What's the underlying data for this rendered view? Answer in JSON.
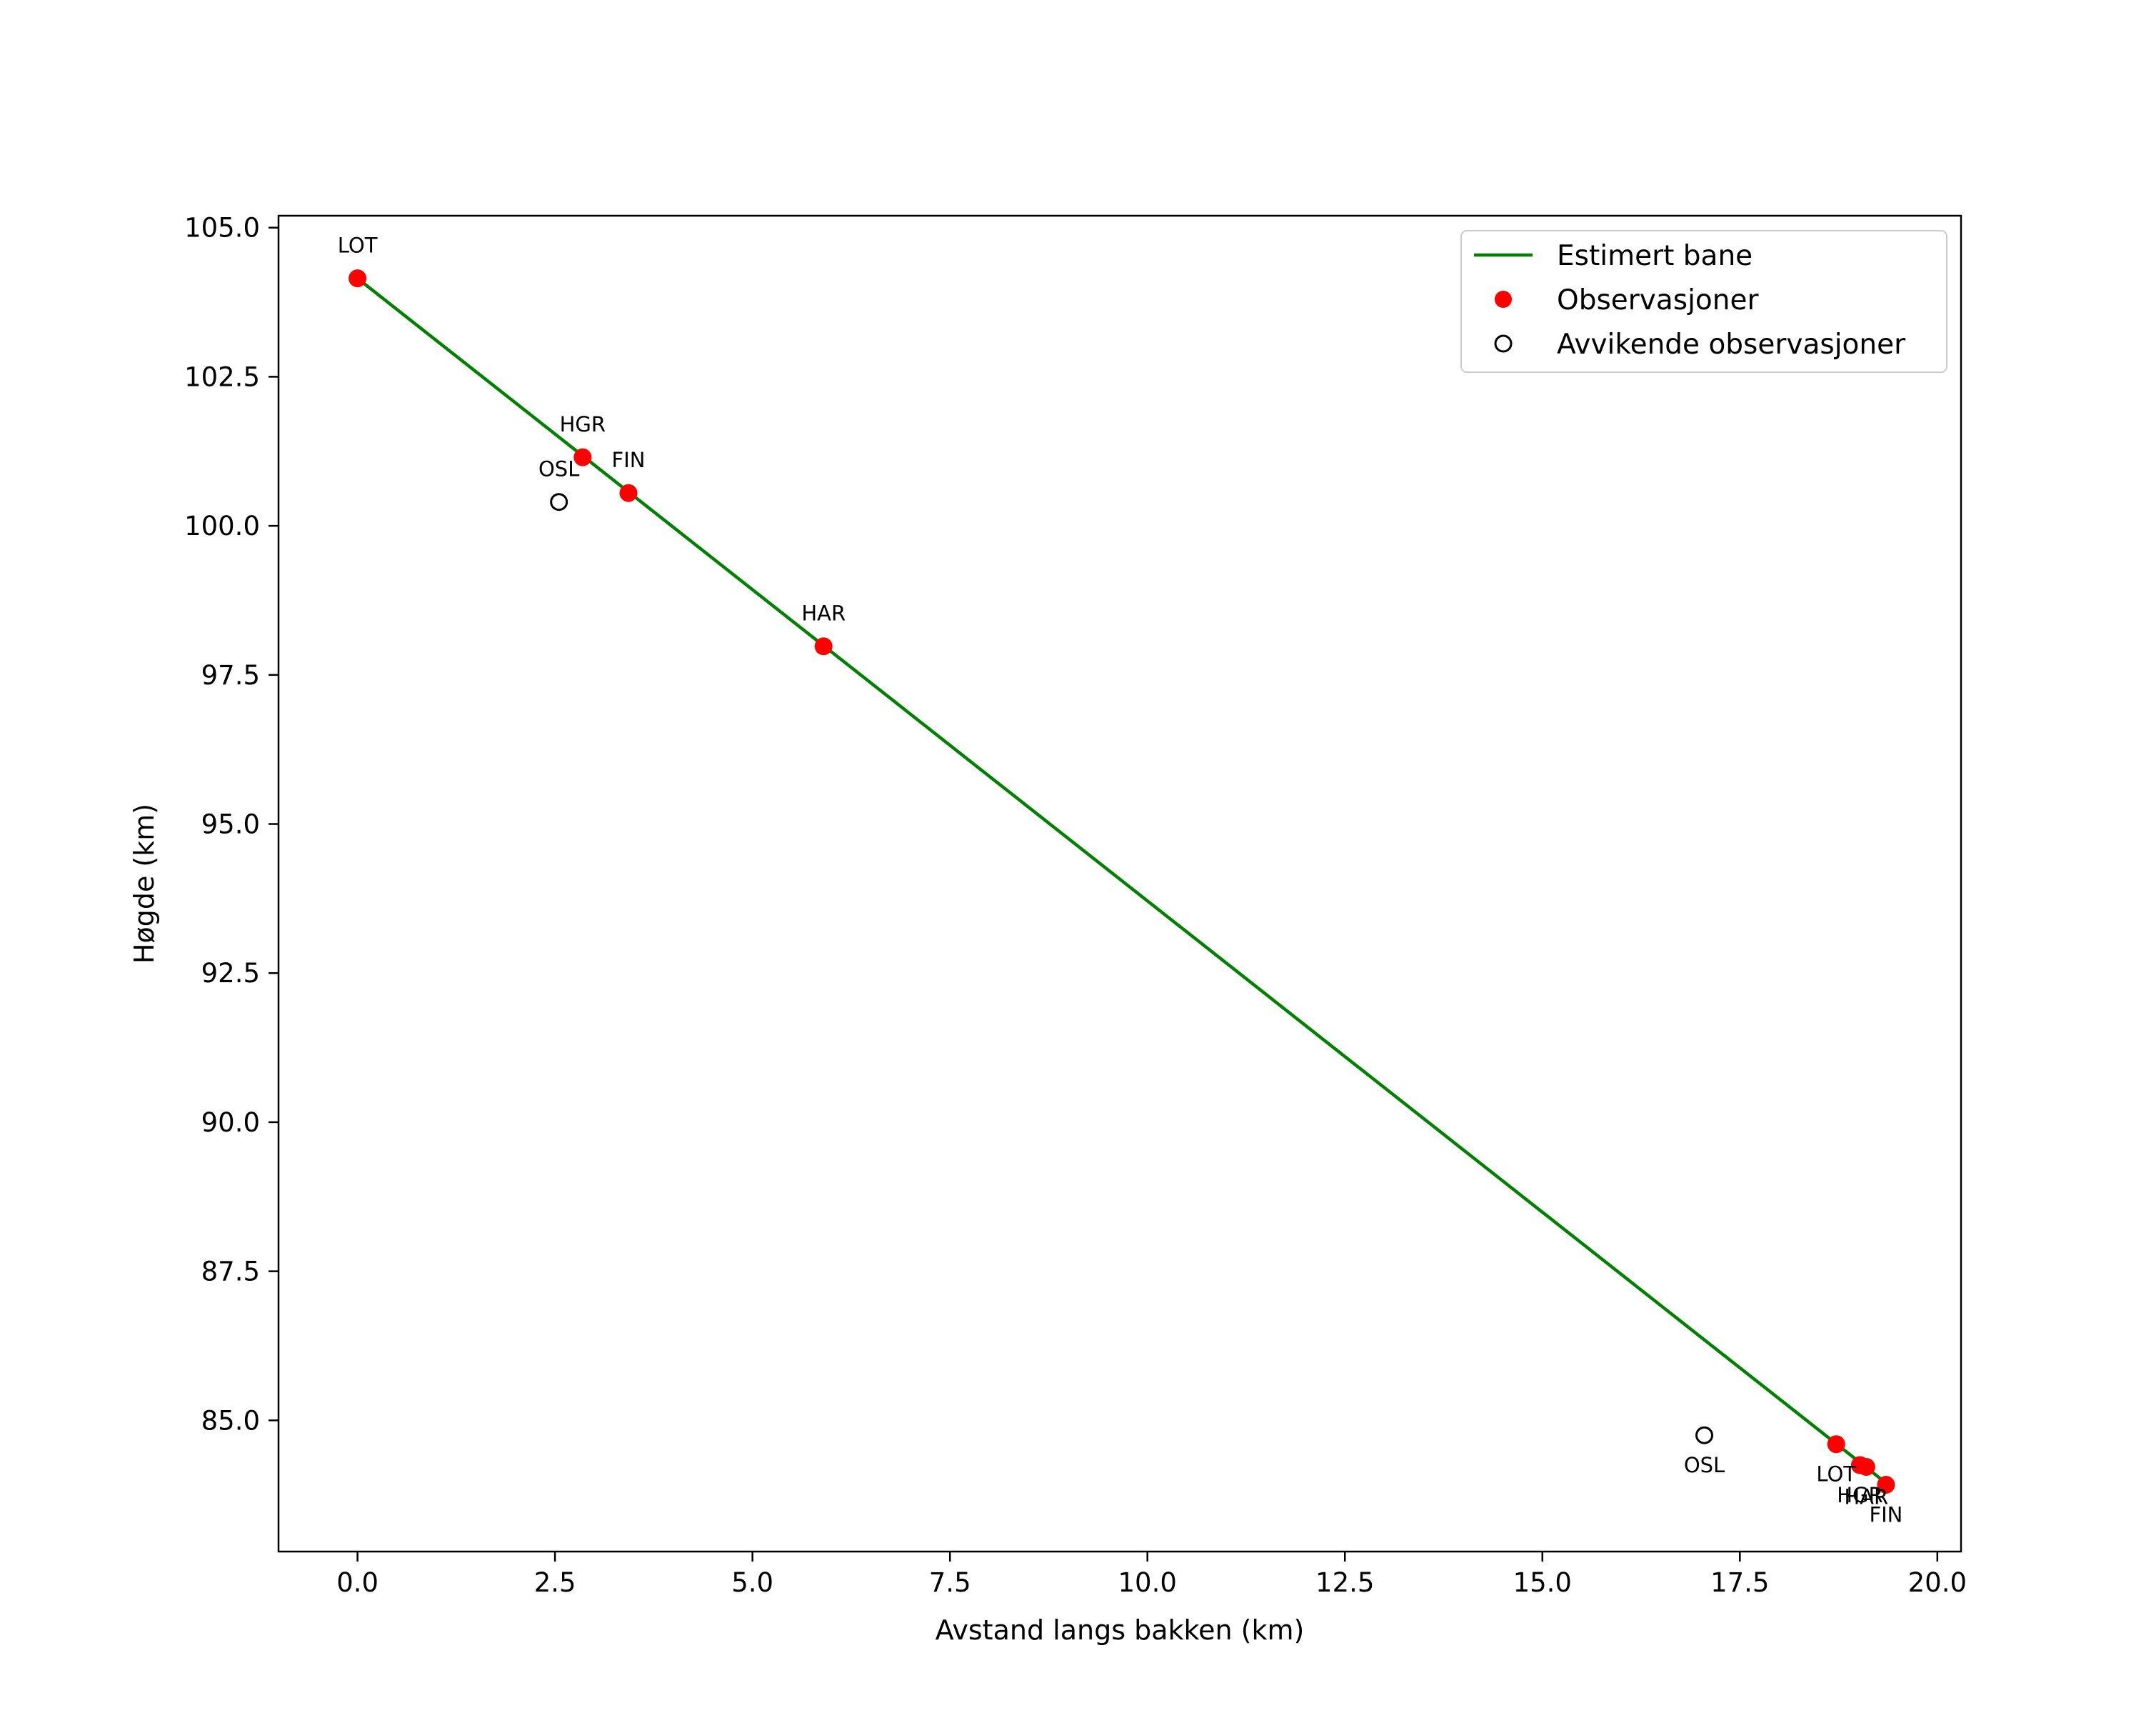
{
  "chart_data": {
    "type": "line",
    "title": "",
    "xlabel": "Avstand langs bakken (km)",
    "ylabel": "Høgde (km)",
    "xlim": [
      -1.0,
      20.3
    ],
    "ylim": [
      82.8,
      105.2
    ],
    "xticks": [
      0.0,
      2.5,
      5.0,
      7.5,
      10.0,
      12.5,
      15.0,
      17.5,
      20.0
    ],
    "xtick_labels": [
      "0.0",
      "2.5",
      "5.0",
      "7.5",
      "10.0",
      "12.5",
      "15.0",
      "17.5",
      "20.0"
    ],
    "yticks": [
      85.0,
      87.5,
      90.0,
      92.5,
      95.0,
      97.5,
      100.0,
      102.5,
      105.0
    ],
    "ytick_labels": [
      "85.0",
      "87.5",
      "90.0",
      "92.5",
      "95.0",
      "97.5",
      "100.0",
      "102.5",
      "105.0"
    ],
    "legend_position": "top-right",
    "legend": [
      {
        "label": "Estimert bane",
        "kind": "line",
        "color": "#008000"
      },
      {
        "label": "Observasjoner",
        "kind": "dot",
        "color": "#ff0000"
      },
      {
        "label": "Avvikende observasjoner",
        "kind": "ring",
        "color": "#000000"
      }
    ],
    "series": [
      {
        "name": "Estimert bane",
        "kind": "line",
        "color": "#008000",
        "x": [
          0.0,
          19.35
        ],
        "y": [
          104.15,
          83.95
        ]
      },
      {
        "name": "Observasjoner",
        "kind": "dot",
        "color": "#ff0000",
        "points": [
          {
            "x": 0.0,
            "y": 104.15,
            "label": "LOT",
            "label_side": "above"
          },
          {
            "x": 2.85,
            "y": 101.15,
            "label": "HGR",
            "label_side": "above"
          },
          {
            "x": 3.43,
            "y": 100.55,
            "label": "FIN",
            "label_side": "above"
          },
          {
            "x": 5.9,
            "y": 97.98,
            "label": "HAR",
            "label_side": "above"
          },
          {
            "x": 18.72,
            "y": 84.6,
            "label": "LOT",
            "label_side": "below"
          },
          {
            "x": 19.02,
            "y": 84.25,
            "label": "HGR",
            "label_side": "below"
          },
          {
            "x": 19.1,
            "y": 84.22,
            "label": "HAR",
            "label_side": "below"
          },
          {
            "x": 19.35,
            "y": 83.92,
            "label": "FIN",
            "label_side": "below"
          }
        ]
      },
      {
        "name": "Avvikende observasjoner",
        "kind": "ring",
        "color": "#000000",
        "points": [
          {
            "x": 2.55,
            "y": 100.4,
            "label": "OSL",
            "label_side": "above"
          },
          {
            "x": 17.05,
            "y": 84.75,
            "label": "OSL",
            "label_side": "below"
          }
        ]
      }
    ]
  }
}
